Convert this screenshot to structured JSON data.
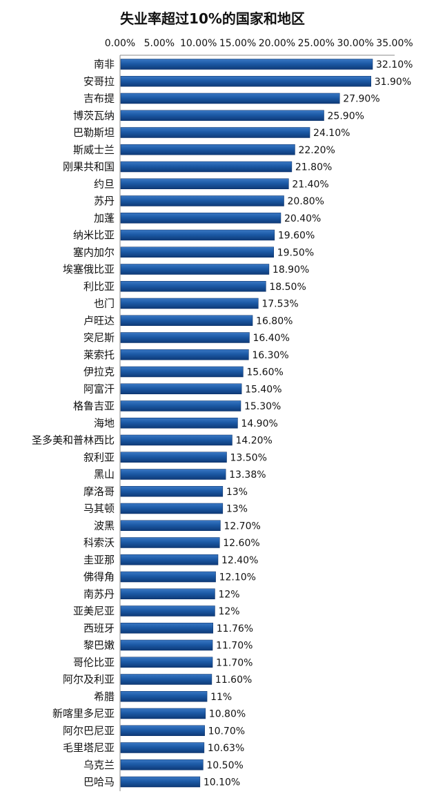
{
  "chart_data": {
    "type": "bar",
    "orientation": "horizontal",
    "title": "失业率超过10%的国家和地区",
    "xlim": [
      0,
      35
    ],
    "x_ticks": [
      "0.00%",
      "5.00%",
      "10.00%",
      "15.00%",
      "20.00%",
      "25.00%",
      "30.00%",
      "35.00%"
    ],
    "bar_color": "#1a4f96",
    "categories": [
      "南非",
      "安哥拉",
      "吉布提",
      "博茨瓦纳",
      "巴勒斯坦",
      "斯威士兰",
      "刚果共和国",
      "约旦",
      "苏丹",
      "加蓬",
      "纳米比亚",
      "塞内加尔",
      "埃塞俄比亚",
      "利比亚",
      "也门",
      "卢旺达",
      "突尼斯",
      "莱索托",
      "伊拉克",
      "阿富汗",
      "格鲁吉亚",
      "海地",
      "圣多美和普林西比",
      "叙利亚",
      "黑山",
      "摩洛哥",
      "马其顿",
      "波黑",
      "科索沃",
      "圭亚那",
      "佛得角",
      "南苏丹",
      "亚美尼亚",
      "西班牙",
      "黎巴嫩",
      "哥伦比亚",
      "阿尔及利亚",
      "希腊",
      "新喀里多尼亚",
      "阿尔巴尼亚",
      "毛里塔尼亚",
      "乌克兰",
      "巴哈马"
    ],
    "values": [
      32.1,
      31.9,
      27.9,
      25.9,
      24.1,
      22.2,
      21.8,
      21.4,
      20.8,
      20.4,
      19.6,
      19.5,
      18.9,
      18.5,
      17.53,
      16.8,
      16.4,
      16.3,
      15.6,
      15.4,
      15.3,
      14.9,
      14.2,
      13.5,
      13.38,
      13,
      13,
      12.7,
      12.6,
      12.4,
      12.1,
      12,
      12,
      11.76,
      11.7,
      11.7,
      11.6,
      11,
      10.8,
      10.7,
      10.63,
      10.5,
      10.1
    ],
    "value_labels": [
      "32.10%",
      "31.90%",
      "27.90%",
      "25.90%",
      "24.10%",
      "22.20%",
      "21.80%",
      "21.40%",
      "20.80%",
      "20.40%",
      "19.60%",
      "19.50%",
      "18.90%",
      "18.50%",
      "17.53%",
      "16.80%",
      "16.40%",
      "16.30%",
      "15.60%",
      "15.40%",
      "15.30%",
      "14.90%",
      "14.20%",
      "13.50%",
      "13.38%",
      "13%",
      "13%",
      "12.70%",
      "12.60%",
      "12.40%",
      "12.10%",
      "12%",
      "12%",
      "11.76%",
      "11.70%",
      "11.70%",
      "11.60%",
      "11%",
      "10.80%",
      "10.70%",
      "10.63%",
      "10.50%",
      "10.10%"
    ]
  }
}
